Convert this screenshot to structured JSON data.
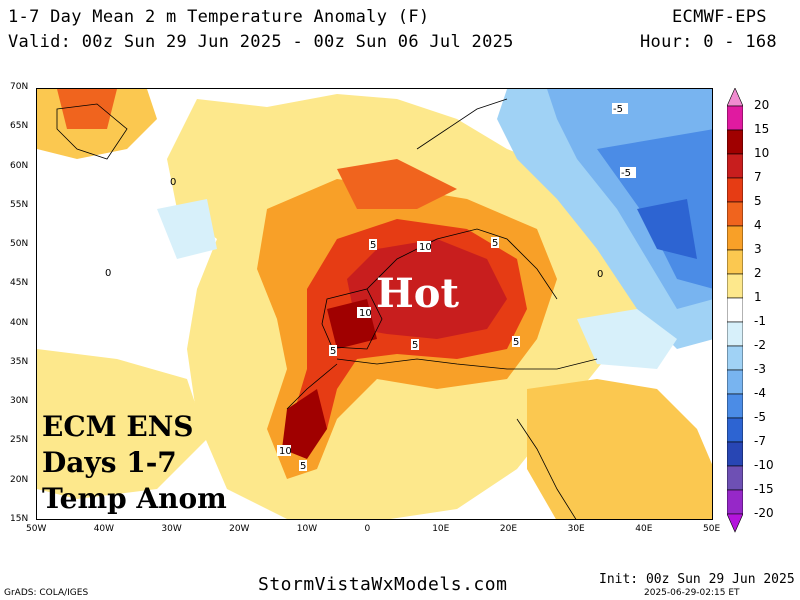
{
  "header": {
    "title": "1-7 Day Mean 2 m Temperature Anomaly (F)",
    "valid": "Valid: 00z Sun 29 Jun 2025 - 00z Sun 06 Jul 2025",
    "model": "ECMWF-EPS",
    "hour": "Hour: 0 - 168"
  },
  "map": {
    "lat_labels": [
      "70N",
      "65N",
      "60N",
      "55N",
      "50N",
      "45N",
      "40N",
      "35N",
      "30N",
      "25N",
      "20N",
      "15N"
    ],
    "lon_labels": [
      "50W",
      "40W",
      "30W",
      "20W",
      "10W",
      "0",
      "10E",
      "20E",
      "30E",
      "40E",
      "50E"
    ],
    "overlay_hot": "Hot",
    "overlay_box": [
      "ECM ENS",
      "Days 1-7",
      "Temp Anom"
    ],
    "contour_labels": {
      "c10": "10",
      "c5": "5",
      "cneg5": "-5",
      "c0": "0"
    }
  },
  "colorbar": {
    "levels": [
      "20",
      "15",
      "10",
      "7",
      "5",
      "4",
      "3",
      "2",
      "1",
      "-1",
      "-2",
      "-3",
      "-4",
      "-5",
      "-7",
      "-10",
      "-15",
      "-20"
    ],
    "colors": [
      "#f08cd0",
      "#e01aa0",
      "#a00000",
      "#c81e1e",
      "#e63c14",
      "#f0641e",
      "#f8a028",
      "#fbc850",
      "#fde88c",
      "#ffffff",
      "#d7f0fa",
      "#a0d2f5",
      "#78b4f0",
      "#4b8ce6",
      "#2d64d2",
      "#2846b4",
      "#6e50b4",
      "#9628c8",
      "#b414dc"
    ]
  },
  "footer": {
    "grads": "GrADS: COLA/IGES",
    "site": "StormVistaWxModels.com",
    "init": "Init: 00z Sun 29 Jun 2025",
    "timestamp": "2025-06-29-02:15 ET"
  }
}
